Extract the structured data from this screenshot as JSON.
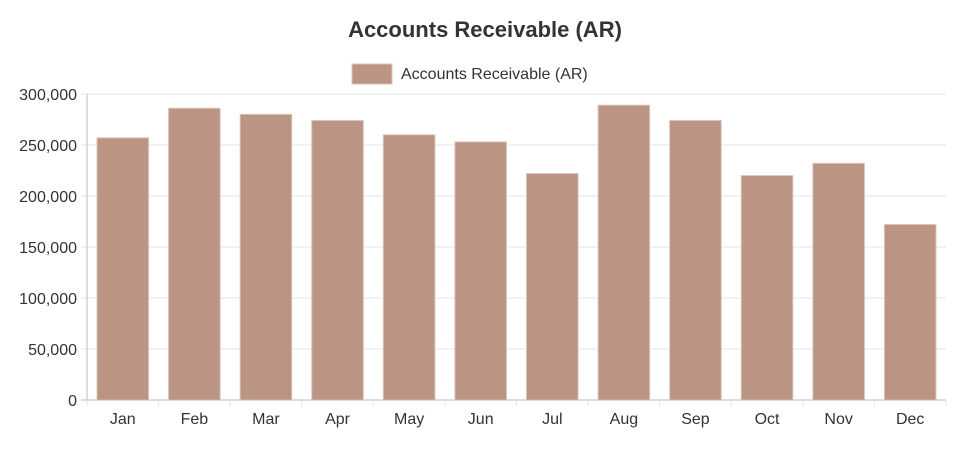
{
  "chart_data": {
    "type": "bar",
    "title": "Accounts Receivable (AR)",
    "xlabel": "",
    "ylabel": "",
    "categories": [
      "Jan",
      "Feb",
      "Mar",
      "Apr",
      "May",
      "Jun",
      "Jul",
      "Aug",
      "Sep",
      "Oct",
      "Nov",
      "Dec"
    ],
    "series": [
      {
        "name": "Accounts Receivable (AR)",
        "color": "#bb9483",
        "values": [
          257000,
          286000,
          280000,
          274000,
          260000,
          253000,
          222000,
          289000,
          274000,
          220000,
          232000,
          172000
        ]
      }
    ],
    "ylim": [
      0,
      300000
    ],
    "yticks": [
      "0",
      "50,000",
      "100,000",
      "150,000",
      "200,000",
      "250,000",
      "300,000"
    ],
    "ytick_values": [
      0,
      50000,
      100000,
      150000,
      200000,
      250000,
      300000
    ],
    "grid": true,
    "legend_position": "top-center"
  }
}
